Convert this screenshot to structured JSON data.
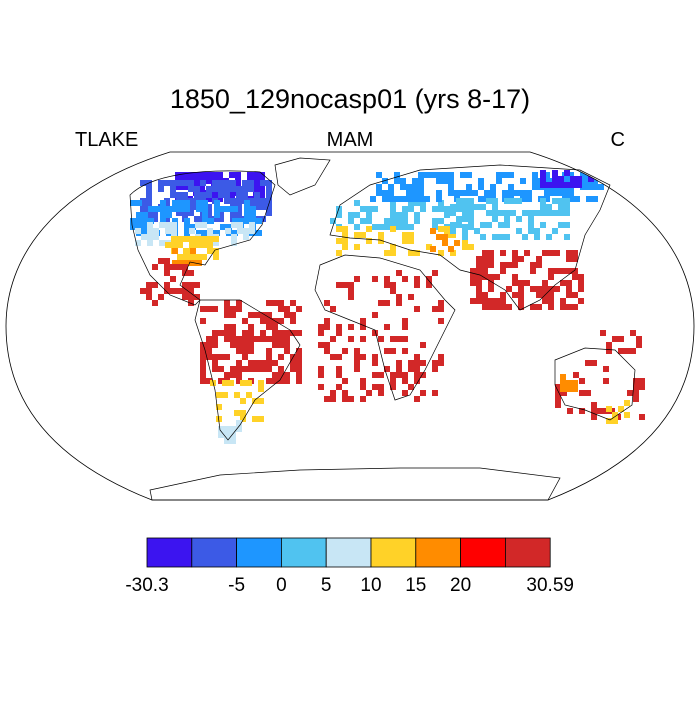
{
  "title": "1850_129nocasp01 (yrs 8-17)",
  "left_label": "TLAKE",
  "center_label": "MAM",
  "right_label": "C",
  "colorbar": {
    "colors": [
      "#3c14f0",
      "#3c5ae6",
      "#1e96ff",
      "#50c3f0",
      "#c8e6f5",
      "#ffd228",
      "#ff8c00",
      "#ff0000",
      "#d22828"
    ],
    "boundaries": [
      -30.3,
      null,
      -5,
      0,
      5,
      10,
      15,
      20,
      null,
      30.59
    ]
  }
}
